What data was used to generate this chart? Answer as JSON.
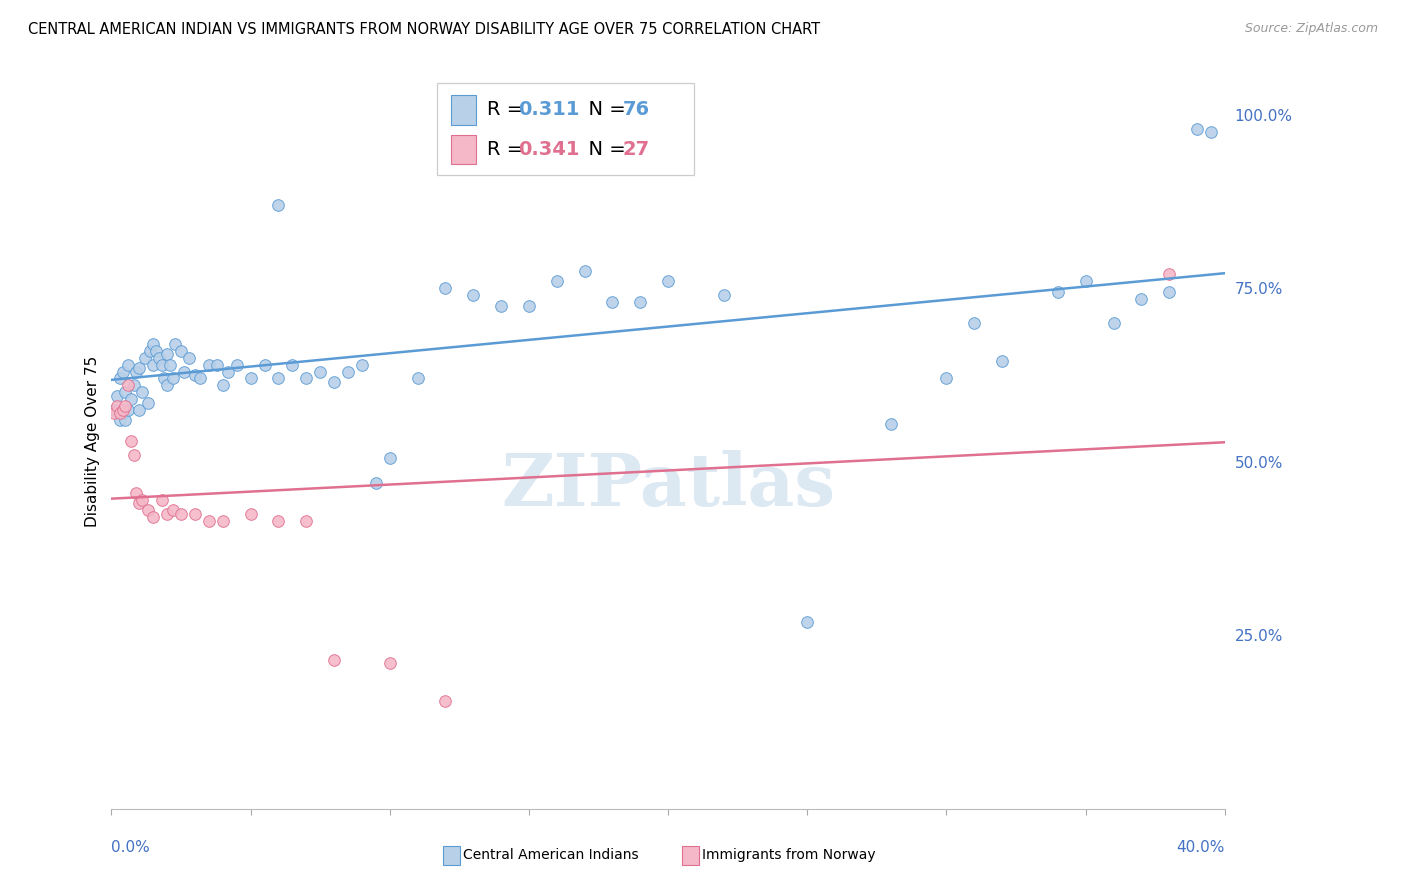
{
  "title": "CENTRAL AMERICAN INDIAN VS IMMIGRANTS FROM NORWAY DISABILITY AGE OVER 75 CORRELATION CHART",
  "source": "Source: ZipAtlas.com",
  "ylabel": "Disability Age Over 75",
  "r_blue": 0.311,
  "n_blue": 76,
  "r_pink": 0.341,
  "n_pink": 27,
  "blue_fill": "#b8d0e8",
  "blue_edge": "#5b9bd5",
  "pink_fill": "#f4b8c8",
  "pink_edge": "#e07090",
  "blue_line": "#5b9bd5",
  "pink_line": "#e07090",
  "watermark": "ZIPatlas",
  "legend_blue_label": "Central American Indians",
  "legend_pink_label": "Immigrants from Norway",
  "axis_label_color": "#4472c4",
  "title_fontsize": 10.5,
  "source_fontsize": 9,
  "right_ytick_labels": [
    "",
    "25.0%",
    "50.0%",
    "75.0%",
    "100.0%"
  ],
  "right_ytick_vals": [
    0.0,
    0.25,
    0.5,
    0.75,
    1.0
  ],
  "xlim": [
    0,
    0.4
  ],
  "ylim": [
    0,
    1.06
  ],
  "blue_x": [
    0.001,
    0.002,
    0.003,
    0.003,
    0.004,
    0.004,
    0.005,
    0.005,
    0.006,
    0.006,
    0.007,
    0.008,
    0.009,
    0.01,
    0.01,
    0.011,
    0.012,
    0.013,
    0.014,
    0.015,
    0.015,
    0.016,
    0.017,
    0.018,
    0.019,
    0.02,
    0.02,
    0.021,
    0.022,
    0.023,
    0.025,
    0.026,
    0.028,
    0.03,
    0.032,
    0.035,
    0.038,
    0.04,
    0.042,
    0.045,
    0.05,
    0.055,
    0.06,
    0.065,
    0.07,
    0.075,
    0.08,
    0.085,
    0.09,
    0.095,
    0.1,
    0.11,
    0.12,
    0.13,
    0.14,
    0.15,
    0.16,
    0.17,
    0.18,
    0.19,
    0.2,
    0.22,
    0.25,
    0.28,
    0.3,
    0.31,
    0.32,
    0.34,
    0.35,
    0.36,
    0.37,
    0.38,
    0.39,
    0.395,
    0.06,
    0.12
  ],
  "blue_y": [
    0.575,
    0.595,
    0.56,
    0.62,
    0.57,
    0.63,
    0.56,
    0.6,
    0.575,
    0.64,
    0.59,
    0.61,
    0.63,
    0.575,
    0.635,
    0.6,
    0.65,
    0.585,
    0.66,
    0.64,
    0.67,
    0.66,
    0.65,
    0.64,
    0.62,
    0.61,
    0.655,
    0.64,
    0.62,
    0.67,
    0.66,
    0.63,
    0.65,
    0.625,
    0.62,
    0.64,
    0.64,
    0.61,
    0.63,
    0.64,
    0.62,
    0.64,
    0.62,
    0.64,
    0.62,
    0.63,
    0.615,
    0.63,
    0.64,
    0.47,
    0.505,
    0.62,
    0.75,
    0.74,
    0.725,
    0.725,
    0.76,
    0.775,
    0.73,
    0.73,
    0.76,
    0.74,
    0.27,
    0.555,
    0.62,
    0.7,
    0.645,
    0.745,
    0.76,
    0.7,
    0.735,
    0.745,
    0.98,
    0.975,
    0.87,
    0.985
  ],
  "pink_x": [
    0.001,
    0.002,
    0.003,
    0.004,
    0.005,
    0.006,
    0.007,
    0.008,
    0.009,
    0.01,
    0.011,
    0.013,
    0.015,
    0.018,
    0.02,
    0.022,
    0.025,
    0.03,
    0.035,
    0.04,
    0.05,
    0.06,
    0.07,
    0.08,
    0.1,
    0.12,
    0.38
  ],
  "pink_y": [
    0.57,
    0.58,
    0.57,
    0.575,
    0.58,
    0.61,
    0.53,
    0.51,
    0.455,
    0.44,
    0.445,
    0.43,
    0.42,
    0.445,
    0.425,
    0.43,
    0.425,
    0.425,
    0.415,
    0.415,
    0.425,
    0.415,
    0.415,
    0.215,
    0.21,
    0.155,
    0.77
  ]
}
